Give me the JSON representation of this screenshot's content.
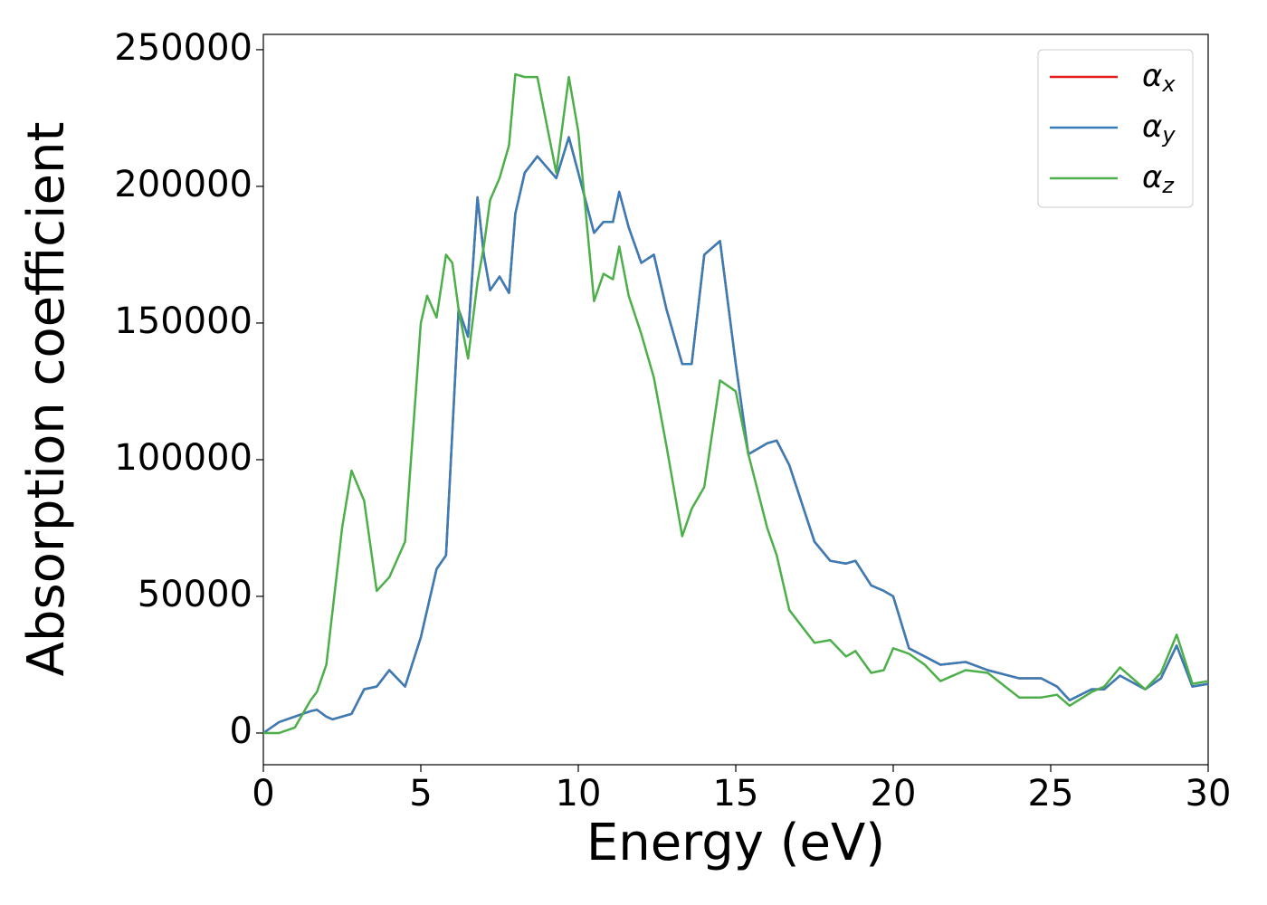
{
  "chart_data": {
    "type": "line",
    "xlabel": "Energy (eV)",
    "ylabel": "Absorption coefficient",
    "x": [
      0,
      0.5,
      1,
      1.5,
      1.7,
      2,
      2.2,
      2.5,
      2.8,
      3.2,
      3.6,
      4,
      4.5,
      5,
      5.2,
      5.5,
      5.8,
      6,
      6.2,
      6.5,
      6.8,
      7,
      7.2,
      7.5,
      7.8,
      8,
      8.3,
      8.7,
      9.3,
      9.7,
      10,
      10.5,
      10.8,
      11.1,
      11.3,
      11.6,
      12,
      12.4,
      12.8,
      13.3,
      13.6,
      14,
      14.5,
      15,
      15.4,
      16,
      16.3,
      16.7,
      17.5,
      18,
      18.5,
      18.8,
      19.3,
      19.7,
      20,
      20.5,
      21,
      21.5,
      22.3,
      23,
      24,
      24.7,
      25.2,
      25.6,
      26.3,
      26.7,
      27.2,
      28,
      28.5,
      29,
      29.5,
      30
    ],
    "series": [
      {
        "name": "αx",
        "color": "#e41a1c",
        "values": [
          0,
          4000,
          6000,
          8000,
          8500,
          6000,
          5000,
          6000,
          7000,
          16000,
          17000,
          23000,
          17000,
          35000,
          45000,
          60000,
          65000,
          110000,
          155000,
          145000,
          196000,
          175000,
          162000,
          167000,
          161000,
          190000,
          205000,
          211000,
          203000,
          218000,
          205000,
          183000,
          187000,
          187000,
          198000,
          185000,
          172000,
          175000,
          155000,
          135000,
          135000,
          175000,
          180000,
          135000,
          102000,
          106000,
          107000,
          98000,
          70000,
          63000,
          62000,
          63000,
          54000,
          52000,
          50000,
          31000,
          28000,
          25000,
          26000,
          23000,
          20000,
          20000,
          17000,
          12000,
          16000,
          16000,
          21000,
          16000,
          20000,
          32000,
          17000,
          18000
        ]
      },
      {
        "name": "αy",
        "color": "#377eb8",
        "values": [
          0,
          4000,
          6000,
          8000,
          8500,
          6000,
          5000,
          6000,
          7000,
          16000,
          17000,
          23000,
          17000,
          35000,
          45000,
          60000,
          65000,
          110000,
          155000,
          145000,
          196000,
          175000,
          162000,
          167000,
          161000,
          190000,
          205000,
          211000,
          203000,
          218000,
          205000,
          183000,
          187000,
          187000,
          198000,
          185000,
          172000,
          175000,
          155000,
          135000,
          135000,
          175000,
          180000,
          135000,
          102000,
          106000,
          107000,
          98000,
          70000,
          63000,
          62000,
          63000,
          54000,
          52000,
          50000,
          31000,
          28000,
          25000,
          26000,
          23000,
          20000,
          20000,
          17000,
          12000,
          16000,
          16000,
          21000,
          16000,
          20000,
          32000,
          17000,
          18000
        ]
      },
      {
        "name": "αz",
        "color": "#4daf4a",
        "values": [
          0,
          0,
          2000,
          12000,
          15000,
          25000,
          45000,
          75000,
          96000,
          85000,
          52000,
          57000,
          70000,
          150000,
          160000,
          152000,
          175000,
          172000,
          155000,
          137000,
          165000,
          178000,
          195000,
          203000,
          215000,
          241000,
          240000,
          240000,
          205000,
          240000,
          220000,
          158000,
          168000,
          166000,
          178000,
          160000,
          146000,
          130000,
          105000,
          72000,
          82000,
          90000,
          129000,
          125000,
          102000,
          75000,
          65000,
          45000,
          33000,
          34000,
          28000,
          30000,
          22000,
          23000,
          31000,
          29000,
          25000,
          19000,
          23000,
          22000,
          13000,
          13000,
          14000,
          10000,
          15000,
          17000,
          24000,
          16000,
          22000,
          36000,
          18000,
          19000
        ]
      }
    ],
    "xlim": [
      0,
      30
    ],
    "xticks": [
      0,
      5,
      10,
      15,
      20,
      25,
      30
    ],
    "ylim": [
      -11600,
      255600
    ],
    "yticks": [
      0,
      50000,
      100000,
      150000,
      200000,
      250000
    ],
    "grid": false,
    "legend": "upper right"
  }
}
